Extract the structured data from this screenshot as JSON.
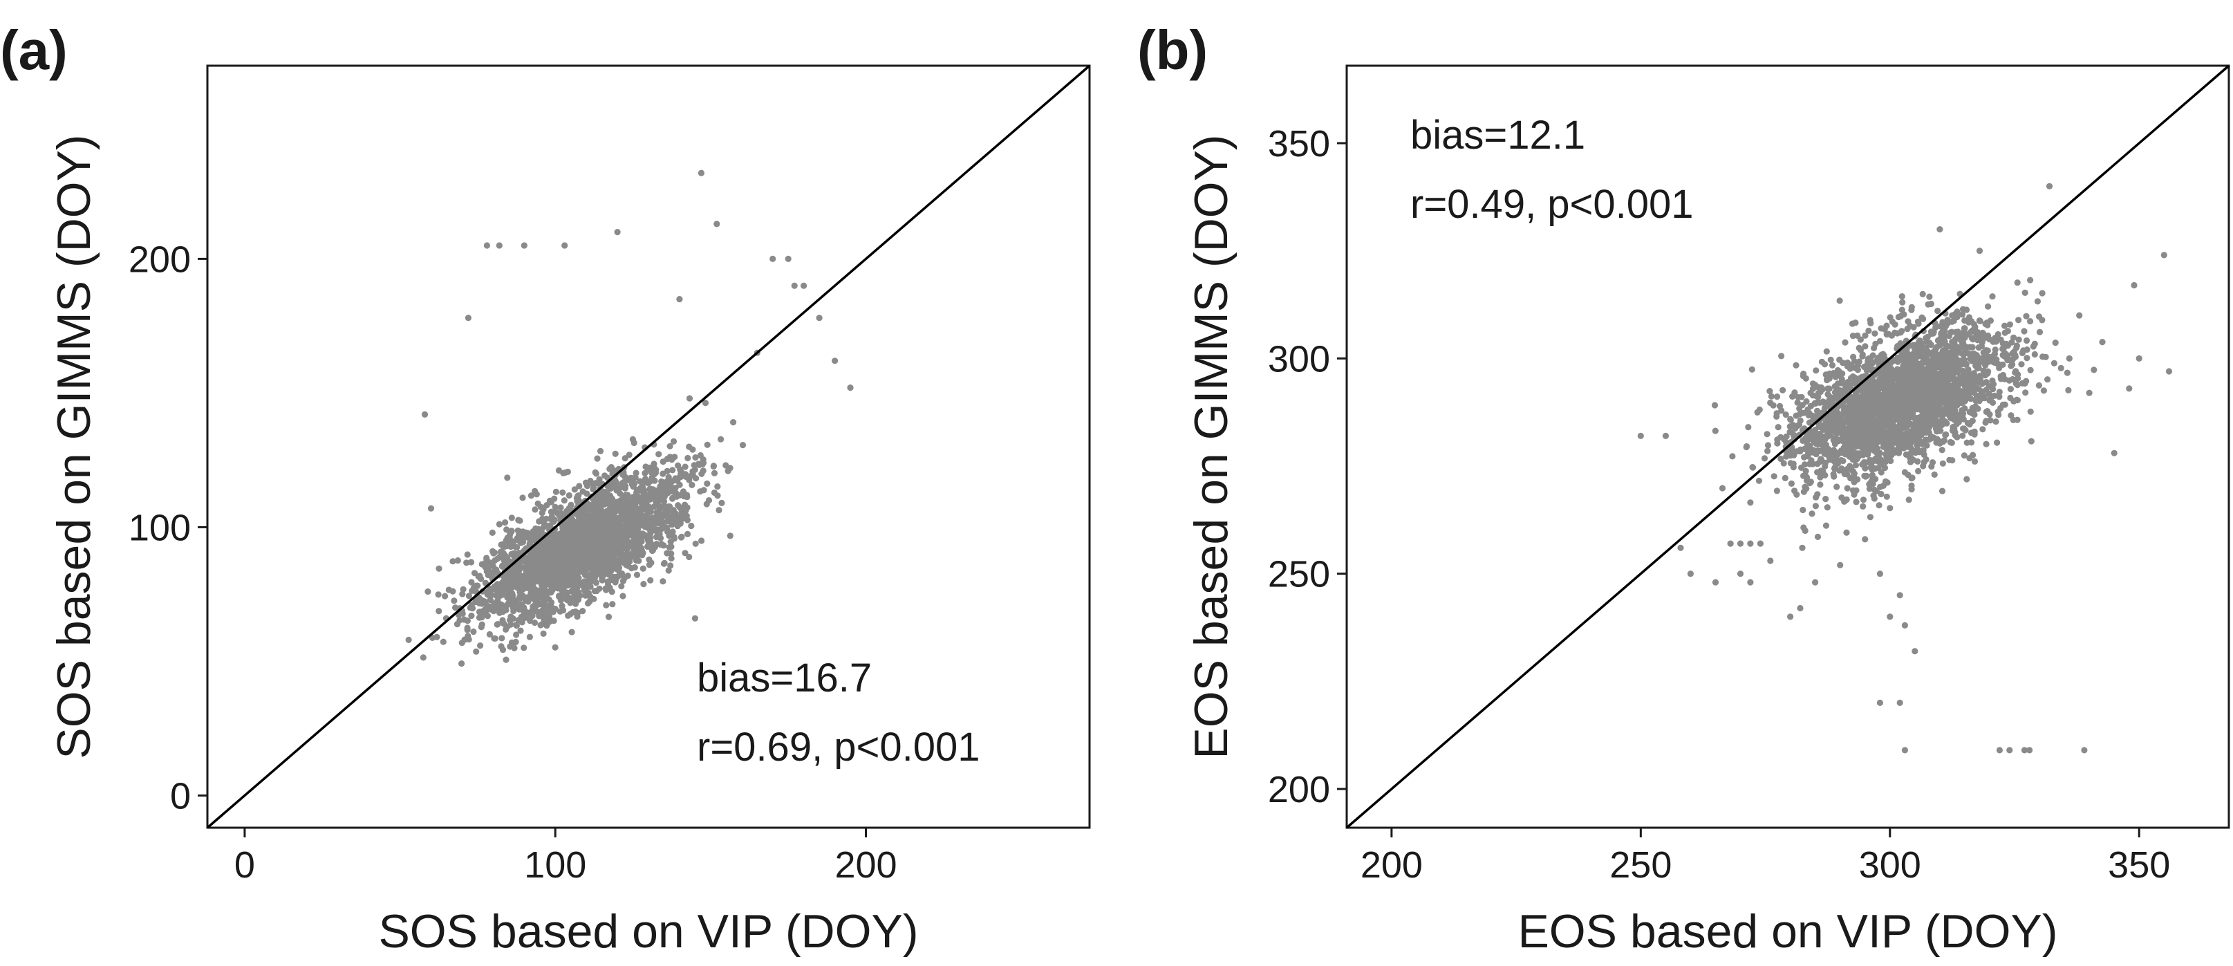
{
  "chart_data": [
    {
      "type": "scatter",
      "panel_label": "(a)",
      "xlabel": "SOS based on VIP (DOY)",
      "ylabel": "SOS based on GIMMS (DOY)",
      "xlim": [
        -12,
        272
      ],
      "ylim": [
        -12,
        272
      ],
      "xticks": [
        0,
        100,
        200
      ],
      "yticks": [
        0,
        100,
        200
      ],
      "reference_line": "1:1",
      "annotations": [
        "bias=16.7",
        "r=0.69, p<0.001"
      ],
      "annotation_position": "bottom-right",
      "point_color": "#8a8a8a",
      "cloud": {
        "n": 2600,
        "mean_x": 108,
        "mean_y": 93,
        "sd_x": 17,
        "sd_y": 14,
        "r": 0.69,
        "seed": 11,
        "x_range": [
          52,
          200
        ],
        "y_range": [
          35,
          235
        ]
      },
      "outliers": [
        [
          78,
          205
        ],
        [
          82,
          205
        ],
        [
          90,
          205
        ],
        [
          103,
          205
        ],
        [
          120,
          210
        ],
        [
          147,
          232
        ],
        [
          152,
          213
        ],
        [
          72,
          178
        ],
        [
          58,
          142
        ],
        [
          170,
          200
        ],
        [
          175,
          200
        ],
        [
          177,
          190
        ],
        [
          180,
          190
        ],
        [
          185,
          178
        ],
        [
          195,
          152
        ],
        [
          190,
          162
        ],
        [
          145,
          66
        ],
        [
          165,
          165
        ],
        [
          140,
          185
        ],
        [
          60,
          107
        ]
      ]
    },
    {
      "type": "scatter",
      "panel_label": "(b)",
      "xlabel": "EOS based on VIP (DOY)",
      "ylabel": "EOS based on GIMMS (DOY)",
      "xlim": [
        191,
        368
      ],
      "ylim": [
        191,
        368
      ],
      "xticks": [
        200,
        250,
        300,
        350
      ],
      "yticks": [
        200,
        250,
        300,
        350
      ],
      "reference_line": "1:1",
      "annotations": [
        "bias=12.1",
        "r=0.49, p<0.001"
      ],
      "annotation_position": "top-left",
      "point_color": "#8a8a8a",
      "cloud": {
        "n": 2600,
        "mean_x": 302,
        "mean_y": 290,
        "sd_x": 11,
        "sd_y": 9,
        "r": 0.49,
        "seed": 29,
        "x_range": [
          255,
          358
        ],
        "y_range": [
          250,
          340
        ]
      },
      "outliers": [
        [
          250,
          282
        ],
        [
          255,
          282
        ],
        [
          258,
          256
        ],
        [
          260,
          250
        ],
        [
          265,
          248
        ],
        [
          268,
          257
        ],
        [
          270,
          257
        ],
        [
          272,
          257
        ],
        [
          274,
          257
        ],
        [
          270,
          250
        ],
        [
          272,
          248
        ],
        [
          276,
          253
        ],
        [
          280,
          240
        ],
        [
          282,
          242
        ],
        [
          285,
          248
        ],
        [
          290,
          252
        ],
        [
          295,
          258
        ],
        [
          298,
          250
        ],
        [
          300,
          240
        ],
        [
          302,
          245
        ],
        [
          303,
          238
        ],
        [
          305,
          232
        ],
        [
          298,
          220
        ],
        [
          302,
          220
        ],
        [
          303,
          209
        ],
        [
          322,
          209
        ],
        [
          324,
          209
        ],
        [
          327,
          209
        ],
        [
          328,
          209
        ],
        [
          339,
          209
        ],
        [
          356,
          297
        ],
        [
          355,
          324
        ],
        [
          350,
          300
        ],
        [
          349,
          317
        ],
        [
          345,
          278
        ],
        [
          348,
          293
        ],
        [
          338,
          310
        ],
        [
          340,
          292
        ],
        [
          336,
          300
        ],
        [
          332,
          340
        ],
        [
          310,
          330
        ],
        [
          318,
          325
        ]
      ]
    }
  ]
}
